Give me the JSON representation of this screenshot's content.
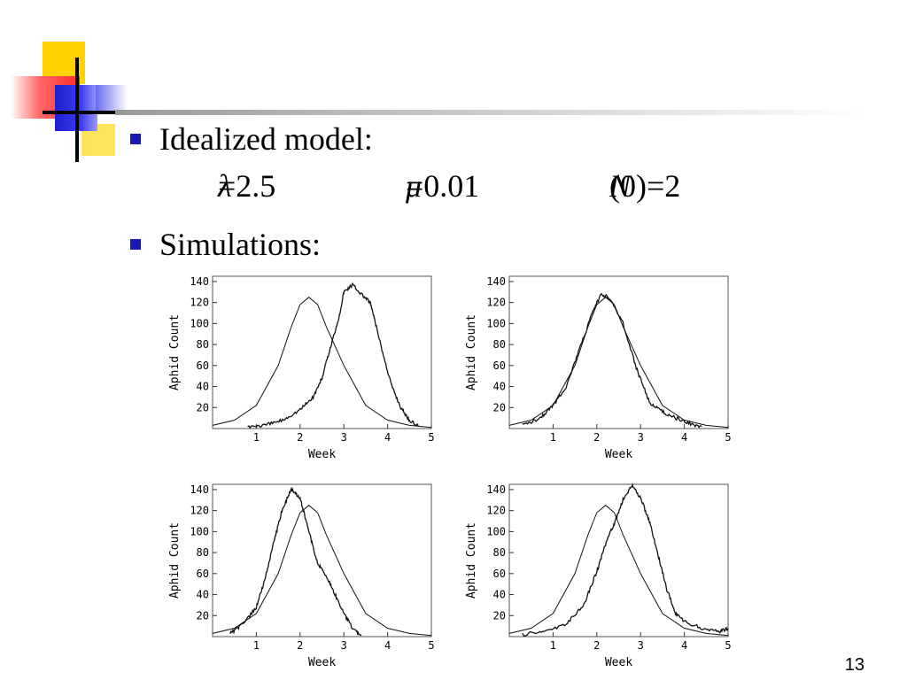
{
  "slide": {
    "bullets": [
      {
        "text": "Idealized model:"
      },
      {
        "text": "Simulations:"
      }
    ],
    "params": {
      "lambda_sym": "λ",
      "lambda_val": "=2.5",
      "mu_sym": "μ",
      "mu_val": "=0.01",
      "n_sym": "N",
      "n_val": "(0)=2"
    },
    "page_number": "13"
  },
  "colors": {
    "bullet": "#1a1ab0",
    "deco_yellow": "#ffd200",
    "deco_red": "#ff3030",
    "deco_blue": "#2020d0",
    "rule": "#c0c0c0"
  },
  "chart_data": [
    {
      "type": "line",
      "xlabel": "Week",
      "ylabel": "Aphid Count",
      "xlim": [
        0,
        5
      ],
      "ylim": [
        0,
        145
      ],
      "xticks": [
        1,
        2,
        3,
        4,
        5
      ],
      "yticks": [
        20,
        40,
        60,
        80,
        100,
        120,
        140
      ],
      "series": [
        {
          "style": "smooth",
          "x": [
            0,
            0.5,
            1,
            1.5,
            1.8,
            2.0,
            2.2,
            2.4,
            2.6,
            3.0,
            3.5,
            4.0,
            4.5,
            5
          ],
          "y": [
            3,
            8,
            22,
            60,
            97,
            118,
            125,
            118,
            97,
            60,
            22,
            8,
            3,
            1
          ]
        },
        {
          "style": "noisy",
          "x": [
            0.8,
            1.2,
            1.6,
            2.0,
            2.3,
            2.5,
            2.7,
            2.9,
            3.0,
            3.2,
            3.4,
            3.6,
            3.7,
            3.9,
            4.1,
            4.3,
            4.5,
            4.7
          ],
          "y": [
            2,
            3,
            8,
            18,
            30,
            48,
            78,
            108,
            130,
            137,
            128,
            120,
            104,
            70,
            40,
            20,
            8,
            2
          ]
        }
      ]
    },
    {
      "type": "line",
      "xlabel": "Week",
      "ylabel": "Aphid Count",
      "xlim": [
        0,
        5
      ],
      "ylim": [
        0,
        145
      ],
      "xticks": [
        1,
        2,
        3,
        4,
        5
      ],
      "yticks": [
        20,
        40,
        60,
        80,
        100,
        120,
        140
      ],
      "series": [
        {
          "style": "smooth",
          "x": [
            0,
            0.5,
            1,
            1.5,
            1.8,
            2.0,
            2.2,
            2.4,
            2.6,
            3.0,
            3.5,
            4.0,
            4.5,
            5
          ],
          "y": [
            3,
            8,
            22,
            60,
            97,
            118,
            125,
            118,
            97,
            60,
            22,
            8,
            3,
            1
          ]
        },
        {
          "style": "noisy",
          "x": [
            0.3,
            0.7,
            1.0,
            1.3,
            1.6,
            1.9,
            2.1,
            2.3,
            2.6,
            2.9,
            3.2,
            3.5,
            3.8,
            4.1,
            4.4
          ],
          "y": [
            3,
            10,
            22,
            40,
            75,
            110,
            128,
            124,
            100,
            58,
            25,
            16,
            10,
            5,
            2
          ]
        }
      ]
    },
    {
      "type": "line",
      "xlabel": "Week",
      "ylabel": "Aphid Count",
      "xlim": [
        0,
        5
      ],
      "ylim": [
        0,
        145
      ],
      "xticks": [
        1,
        2,
        3,
        4,
        5
      ],
      "yticks": [
        20,
        40,
        60,
        80,
        100,
        120,
        140
      ],
      "series": [
        {
          "style": "smooth",
          "x": [
            0,
            0.5,
            1,
            1.5,
            1.8,
            2.0,
            2.2,
            2.4,
            2.6,
            3.0,
            3.5,
            4.0,
            4.5,
            5
          ],
          "y": [
            3,
            8,
            22,
            60,
            97,
            118,
            125,
            118,
            97,
            60,
            22,
            8,
            3,
            1
          ]
        },
        {
          "style": "noisy",
          "x": [
            0.4,
            0.7,
            1.0,
            1.2,
            1.4,
            1.6,
            1.8,
            2.0,
            2.2,
            2.4,
            2.6,
            2.8,
            3.0,
            3.2,
            3.4
          ],
          "y": [
            3,
            12,
            28,
            55,
            90,
            122,
            140,
            132,
            100,
            70,
            58,
            40,
            22,
            8,
            1
          ]
        }
      ]
    },
    {
      "type": "line",
      "xlabel": "Week",
      "ylabel": "Aphid Count",
      "xlim": [
        0,
        5
      ],
      "ylim": [
        0,
        145
      ],
      "xticks": [
        1,
        2,
        3,
        4,
        5
      ],
      "yticks": [
        20,
        40,
        60,
        80,
        100,
        120,
        140
      ],
      "series": [
        {
          "style": "smooth",
          "x": [
            0,
            0.5,
            1,
            1.5,
            1.8,
            2.0,
            2.2,
            2.4,
            2.6,
            3.0,
            3.5,
            4.0,
            4.5,
            5
          ],
          "y": [
            3,
            8,
            22,
            60,
            97,
            118,
            125,
            118,
            97,
            60,
            22,
            8,
            3,
            1
          ]
        },
        {
          "style": "noisy",
          "x": [
            0.3,
            0.8,
            1.3,
            1.7,
            2.0,
            2.2,
            2.4,
            2.6,
            2.8,
            3.0,
            3.2,
            3.4,
            3.6,
            3.8,
            4.0,
            4.4,
            4.8,
            5.0
          ],
          "y": [
            2,
            5,
            12,
            30,
            62,
            88,
            108,
            130,
            144,
            132,
            110,
            78,
            45,
            22,
            14,
            8,
            5,
            8
          ]
        }
      ]
    }
  ]
}
